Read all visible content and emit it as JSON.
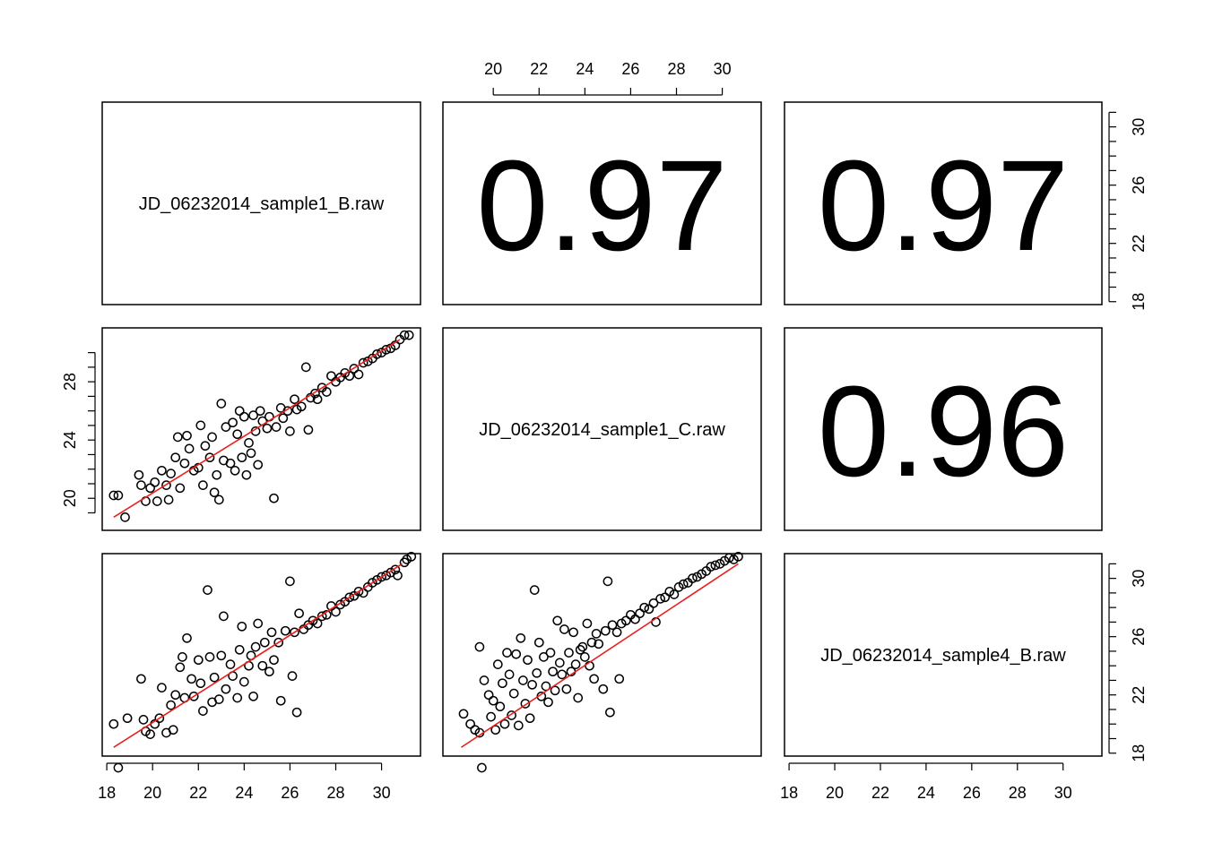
{
  "chart_data": {
    "type": "scatter",
    "title": "",
    "layout": "3x3 pairs matrix (upper: correlation, diagonal: sample names, lower: scatter with fitted line)",
    "variables": [
      "JD_06232014_sample1_B.raw",
      "JD_06232014_sample1_C.raw",
      "JD_06232014_sample4_B.raw"
    ],
    "axis_range": [
      17.8,
      31.7
    ],
    "tick_values": [
      18,
      20,
      22,
      24,
      26,
      28,
      30
    ],
    "correlations": [
      {
        "row": 1,
        "col": 2,
        "label": "0.97"
      },
      {
        "row": 1,
        "col": 3,
        "label": "0.97"
      },
      {
        "row": 2,
        "col": 3,
        "label": "0.96"
      }
    ],
    "fit_line_color": "#e8201e",
    "point_color": "#000000",
    "panels": [
      {
        "row": 2,
        "col": 1,
        "x_variable": "JD_06232014_sample1_B.raw",
        "y_variable": "JD_06232014_sample1_C.raw",
        "fit": {
          "x": [
            18.3,
            30.8
          ],
          "y": [
            18.7,
            30.9
          ]
        },
        "points": [
          [
            18.3,
            20.2
          ],
          [
            18.5,
            20.2
          ],
          [
            18.8,
            18.7
          ],
          [
            19.4,
            21.6
          ],
          [
            19.5,
            20.9
          ],
          [
            19.7,
            19.8
          ],
          [
            19.9,
            20.7
          ],
          [
            20.1,
            21.1
          ],
          [
            20.2,
            19.8
          ],
          [
            20.4,
            21.9
          ],
          [
            20.6,
            20.9
          ],
          [
            20.7,
            19.9
          ],
          [
            20.8,
            21.7
          ],
          [
            21.0,
            22.8
          ],
          [
            21.1,
            24.2
          ],
          [
            21.2,
            20.7
          ],
          [
            21.4,
            22.4
          ],
          [
            21.5,
            24.3
          ],
          [
            21.6,
            23.4
          ],
          [
            21.8,
            21.9
          ],
          [
            22.0,
            22.1
          ],
          [
            22.1,
            25.0
          ],
          [
            22.2,
            20.9
          ],
          [
            22.3,
            23.6
          ],
          [
            22.5,
            22.8
          ],
          [
            22.6,
            24.2
          ],
          [
            22.7,
            20.4
          ],
          [
            22.8,
            21.6
          ],
          [
            22.9,
            19.9
          ],
          [
            23.0,
            26.5
          ],
          [
            23.1,
            22.6
          ],
          [
            23.2,
            24.9
          ],
          [
            23.4,
            22.4
          ],
          [
            23.5,
            25.2
          ],
          [
            23.6,
            21.9
          ],
          [
            23.7,
            24.4
          ],
          [
            23.8,
            26.0
          ],
          [
            23.9,
            22.8
          ],
          [
            24.0,
            25.6
          ],
          [
            24.1,
            21.6
          ],
          [
            24.2,
            23.8
          ],
          [
            24.3,
            23.1
          ],
          [
            24.4,
            25.7
          ],
          [
            24.5,
            24.6
          ],
          [
            24.6,
            22.3
          ],
          [
            24.7,
            26.0
          ],
          [
            24.8,
            25.3
          ],
          [
            25.0,
            24.8
          ],
          [
            25.1,
            25.6
          ],
          [
            25.3,
            20.0
          ],
          [
            25.4,
            24.9
          ],
          [
            25.6,
            26.2
          ],
          [
            25.7,
            25.5
          ],
          [
            25.9,
            26.0
          ],
          [
            26.0,
            24.6
          ],
          [
            26.2,
            26.8
          ],
          [
            26.3,
            26.1
          ],
          [
            26.5,
            26.3
          ],
          [
            26.7,
            29.0
          ],
          [
            26.8,
            24.7
          ],
          [
            26.9,
            26.9
          ],
          [
            27.1,
            27.2
          ],
          [
            27.2,
            26.8
          ],
          [
            27.4,
            27.6
          ],
          [
            27.6,
            27.3
          ],
          [
            27.8,
            28.4
          ],
          [
            28.0,
            28.0
          ],
          [
            28.2,
            28.3
          ],
          [
            28.4,
            28.6
          ],
          [
            28.6,
            28.4
          ],
          [
            28.8,
            28.9
          ],
          [
            29.0,
            28.5
          ],
          [
            29.2,
            29.3
          ],
          [
            29.4,
            29.4
          ],
          [
            29.6,
            29.6
          ],
          [
            29.8,
            29.9
          ],
          [
            30.0,
            30.0
          ],
          [
            30.2,
            30.2
          ],
          [
            30.4,
            30.3
          ],
          [
            30.6,
            30.5
          ],
          [
            30.8,
            30.9
          ],
          [
            31.0,
            31.2
          ],
          [
            31.2,
            31.2
          ]
        ]
      },
      {
        "row": 3,
        "col": 1,
        "x_variable": "JD_06232014_sample1_B.raw",
        "y_variable": "JD_06232014_sample4_B.raw",
        "fit": {
          "x": [
            18.3,
            30.9
          ],
          "y": [
            18.4,
            31.0
          ]
        },
        "points": [
          [
            18.3,
            20.0
          ],
          [
            18.5,
            17.0
          ],
          [
            18.9,
            20.4
          ],
          [
            19.5,
            23.1
          ],
          [
            19.6,
            20.3
          ],
          [
            19.7,
            19.5
          ],
          [
            19.9,
            19.3
          ],
          [
            20.1,
            20.0
          ],
          [
            20.3,
            20.4
          ],
          [
            20.4,
            22.5
          ],
          [
            20.6,
            19.4
          ],
          [
            20.8,
            21.3
          ],
          [
            20.9,
            19.6
          ],
          [
            21.0,
            22.0
          ],
          [
            21.2,
            23.9
          ],
          [
            21.3,
            24.6
          ],
          [
            21.4,
            21.8
          ],
          [
            21.5,
            25.9
          ],
          [
            21.7,
            23.1
          ],
          [
            21.8,
            21.9
          ],
          [
            22.0,
            24.4
          ],
          [
            22.1,
            22.8
          ],
          [
            22.2,
            20.9
          ],
          [
            22.4,
            29.2
          ],
          [
            22.5,
            24.6
          ],
          [
            22.6,
            21.5
          ],
          [
            22.7,
            23.2
          ],
          [
            22.9,
            21.7
          ],
          [
            23.0,
            24.7
          ],
          [
            23.1,
            27.4
          ],
          [
            23.2,
            22.4
          ],
          [
            23.4,
            24.1
          ],
          [
            23.5,
            23.3
          ],
          [
            23.7,
            21.8
          ],
          [
            23.8,
            25.1
          ],
          [
            23.9,
            26.7
          ],
          [
            24.0,
            22.9
          ],
          [
            24.2,
            24.0
          ],
          [
            24.3,
            24.7
          ],
          [
            24.4,
            21.9
          ],
          [
            24.5,
            25.3
          ],
          [
            24.6,
            26.9
          ],
          [
            24.8,
            24.0
          ],
          [
            24.9,
            25.6
          ],
          [
            25.1,
            23.6
          ],
          [
            25.2,
            26.3
          ],
          [
            25.3,
            24.4
          ],
          [
            25.5,
            25.6
          ],
          [
            25.6,
            21.6
          ],
          [
            25.8,
            26.4
          ],
          [
            26.0,
            29.8
          ],
          [
            26.1,
            23.3
          ],
          [
            26.2,
            26.3
          ],
          [
            26.3,
            20.8
          ],
          [
            26.4,
            27.6
          ],
          [
            26.6,
            26.5
          ],
          [
            26.8,
            26.8
          ],
          [
            27.0,
            27.1
          ],
          [
            27.2,
            26.9
          ],
          [
            27.4,
            27.4
          ],
          [
            27.6,
            27.5
          ],
          [
            27.8,
            28.1
          ],
          [
            28.0,
            27.7
          ],
          [
            28.2,
            28.2
          ],
          [
            28.4,
            28.4
          ],
          [
            28.6,
            28.7
          ],
          [
            28.8,
            28.8
          ],
          [
            29.0,
            29.1
          ],
          [
            29.2,
            29.0
          ],
          [
            29.4,
            29.4
          ],
          [
            29.6,
            29.7
          ],
          [
            29.8,
            29.9
          ],
          [
            30.0,
            30.1
          ],
          [
            30.2,
            30.2
          ],
          [
            30.4,
            30.4
          ],
          [
            30.6,
            30.6
          ],
          [
            30.7,
            30.2
          ],
          [
            31.0,
            31.1
          ],
          [
            31.1,
            31.3
          ],
          [
            31.3,
            31.5
          ]
        ]
      },
      {
        "row": 3,
        "col": 2,
        "x_variable": "JD_06232014_sample1_C.raw",
        "y_variable": "JD_06232014_sample4_B.raw",
        "fit": {
          "x": [
            18.6,
            30.7
          ],
          "y": [
            18.4,
            31.0
          ]
        },
        "points": [
          [
            18.7,
            20.7
          ],
          [
            19.0,
            20.0
          ],
          [
            19.2,
            19.6
          ],
          [
            19.4,
            19.4
          ],
          [
            19.4,
            25.3
          ],
          [
            19.5,
            17.0
          ],
          [
            19.6,
            23.0
          ],
          [
            19.8,
            22.0
          ],
          [
            19.9,
            20.5
          ],
          [
            20.0,
            21.6
          ],
          [
            20.1,
            19.6
          ],
          [
            20.2,
            24.1
          ],
          [
            20.3,
            21.2
          ],
          [
            20.4,
            22.8
          ],
          [
            20.5,
            20.0
          ],
          [
            20.6,
            24.9
          ],
          [
            20.7,
            23.4
          ],
          [
            20.8,
            20.6
          ],
          [
            20.9,
            22.1
          ],
          [
            21.0,
            24.8
          ],
          [
            21.1,
            19.9
          ],
          [
            21.2,
            25.9
          ],
          [
            21.3,
            23.0
          ],
          [
            21.4,
            21.4
          ],
          [
            21.5,
            24.4
          ],
          [
            21.6,
            20.4
          ],
          [
            21.7,
            22.7
          ],
          [
            21.8,
            29.2
          ],
          [
            21.9,
            23.5
          ],
          [
            22.0,
            25.6
          ],
          [
            22.1,
            21.9
          ],
          [
            22.2,
            24.6
          ],
          [
            22.3,
            22.6
          ],
          [
            22.4,
            21.5
          ],
          [
            22.5,
            24.9
          ],
          [
            22.6,
            23.6
          ],
          [
            22.7,
            22.3
          ],
          [
            22.8,
            27.1
          ],
          [
            22.9,
            24.2
          ],
          [
            23.0,
            23.4
          ],
          [
            23.1,
            26.5
          ],
          [
            23.2,
            22.4
          ],
          [
            23.3,
            24.9
          ],
          [
            23.4,
            23.6
          ],
          [
            23.5,
            26.3
          ],
          [
            23.6,
            24.1
          ],
          [
            23.7,
            21.8
          ],
          [
            23.8,
            25.1
          ],
          [
            23.9,
            25.3
          ],
          [
            24.0,
            24.6
          ],
          [
            24.1,
            26.9
          ],
          [
            24.2,
            24.0
          ],
          [
            24.3,
            25.6
          ],
          [
            24.4,
            23.1
          ],
          [
            24.5,
            26.2
          ],
          [
            24.6,
            25.5
          ],
          [
            24.8,
            22.4
          ],
          [
            24.9,
            26.4
          ],
          [
            25.0,
            29.8
          ],
          [
            25.1,
            20.8
          ],
          [
            25.2,
            26.8
          ],
          [
            25.4,
            26.3
          ],
          [
            25.5,
            23.1
          ],
          [
            25.6,
            26.9
          ],
          [
            25.8,
            27.1
          ],
          [
            26.0,
            27.5
          ],
          [
            26.2,
            27.2
          ],
          [
            26.4,
            27.6
          ],
          [
            26.6,
            28.0
          ],
          [
            26.8,
            27.9
          ],
          [
            27.0,
            28.3
          ],
          [
            27.1,
            27.0
          ],
          [
            27.3,
            28.6
          ],
          [
            27.5,
            28.7
          ],
          [
            27.7,
            29.1
          ],
          [
            27.9,
            28.9
          ],
          [
            28.1,
            29.4
          ],
          [
            28.3,
            29.6
          ],
          [
            28.5,
            29.7
          ],
          [
            28.7,
            30.0
          ],
          [
            28.9,
            30.1
          ],
          [
            29.1,
            30.3
          ],
          [
            29.3,
            30.5
          ],
          [
            29.5,
            30.8
          ],
          [
            29.7,
            30.9
          ],
          [
            29.9,
            31.0
          ],
          [
            30.1,
            31.2
          ],
          [
            30.3,
            31.4
          ],
          [
            30.5,
            31.3
          ],
          [
            30.7,
            31.5
          ]
        ]
      }
    ]
  }
}
